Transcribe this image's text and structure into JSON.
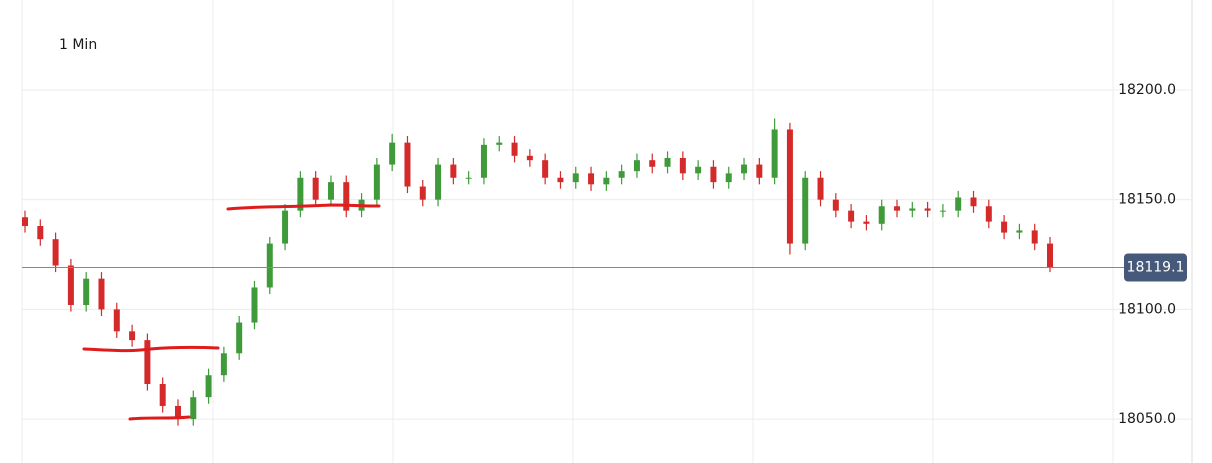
{
  "chart_data": {
    "type": "candlestick",
    "interval_label": "1 Min",
    "open": [
      18142,
      18138,
      18132,
      18120,
      18102,
      18114,
      18100,
      18090,
      18086,
      18066,
      18056,
      18050,
      18060,
      18070,
      18080,
      18094,
      18110,
      18130,
      18145,
      18160,
      18150,
      18158,
      18145,
      18150,
      18166,
      18176,
      18156,
      18150,
      18166,
      18160,
      18160,
      18175,
      18176,
      18170,
      18168,
      18160,
      18158,
      18162,
      18157,
      18160,
      18163,
      18168,
      18165,
      18169,
      18162,
      18165,
      18158,
      18162,
      18166,
      18160,
      18182,
      18130,
      18160,
      18150,
      18145,
      18140,
      18139,
      18147,
      18145,
      18146,
      18145,
      18145,
      18151,
      18147,
      18140,
      18135,
      18136,
      18130
    ],
    "high": [
      18145,
      18141,
      18135,
      18123,
      18117,
      18117,
      18103,
      18093,
      18089,
      18069,
      18059,
      18063,
      18073,
      18083,
      18097,
      18113,
      18133,
      18148,
      18163,
      18163,
      18161,
      18161,
      18153,
      18169,
      18180,
      18179,
      18159,
      18169,
      18169,
      18163,
      18178,
      18179,
      18179,
      18173,
      18171,
      18163,
      18165,
      18165,
      18163,
      18166,
      18171,
      18171,
      18172,
      18172,
      18168,
      18168,
      18165,
      18169,
      18169,
      18187,
      18185,
      18163,
      18163,
      18153,
      18148,
      18143,
      18150,
      18150,
      18149,
      18149,
      18148,
      18154,
      18154,
      18150,
      18143,
      18139,
      18139,
      18133
    ],
    "low": [
      18135,
      18129,
      18117,
      18099,
      18099,
      18097,
      18087,
      18083,
      18063,
      18053,
      18047,
      18047,
      18057,
      18067,
      18077,
      18091,
      18107,
      18127,
      18142,
      18147,
      18147,
      18142,
      18142,
      18147,
      18163,
      18153,
      18147,
      18147,
      18157,
      18157,
      18157,
      18172,
      18167,
      18165,
      18157,
      18155,
      18155,
      18154,
      18154,
      18157,
      18160,
      18162,
      18162,
      18159,
      18159,
      18155,
      18155,
      18159,
      18157,
      18157,
      18125,
      18127,
      18147,
      18142,
      18137,
      18136,
      18136,
      18142,
      18142,
      18142,
      18142,
      18142,
      18144,
      18137,
      18132,
      18132,
      18127,
      18117
    ],
    "close": [
      18138,
      18132,
      18120,
      18102,
      18114,
      18100,
      18090,
      18086,
      18066,
      18056,
      18050,
      18060,
      18070,
      18080,
      18094,
      18110,
      18130,
      18145,
      18160,
      18150,
      18158,
      18145,
      18150,
      18166,
      18176,
      18156,
      18150,
      18166,
      18160,
      18160,
      18175,
      18176,
      18170,
      18168,
      18160,
      18158,
      18162,
      18157,
      18160,
      18163,
      18168,
      18165,
      18169,
      18162,
      18165,
      18158,
      18162,
      18166,
      18160,
      18182,
      18130,
      18160,
      18150,
      18145,
      18140,
      18139,
      18147,
      18145,
      18146,
      18145,
      18145,
      18151,
      18147,
      18140,
      18135,
      18136,
      18130,
      18119.1
    ],
    "ylim": [
      18241,
      18030
    ],
    "yticks": [
      {
        "value": 18200,
        "label": "18200.0"
      },
      {
        "value": 18150,
        "label": "18150.0"
      },
      {
        "value": 18100,
        "label": "18100.0"
      },
      {
        "value": 18050,
        "label": "18050.0"
      }
    ],
    "last_price": 18119.1,
    "up_color": "#3f9b3a",
    "down_color": "#d42a2a",
    "grid": true
  }
}
